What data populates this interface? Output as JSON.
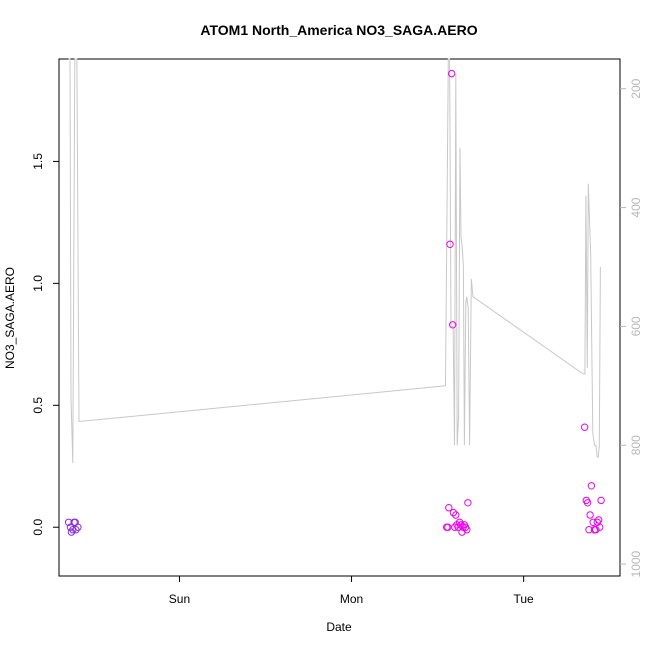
{
  "chart_data": {
    "type": "scatter",
    "title": "ATOM1 North_America NO3_SAGA.AERO",
    "xlabel": "Date",
    "ylabel": "NO3_SAGA.AERO",
    "x_unit": "days since Saturday 00:00",
    "xlim": [
      0.3,
      3.56
    ],
    "ylim": [
      -0.2,
      1.92
    ],
    "x_ticks": [
      {
        "value": 1,
        "label": "Sun"
      },
      {
        "value": 2,
        "label": "Mon"
      },
      {
        "value": 3,
        "label": "Tue"
      }
    ],
    "y_ticks": [
      {
        "value": 0.0,
        "label": "0.0"
      },
      {
        "value": 0.5,
        "label": "0.5"
      },
      {
        "value": 1.0,
        "label": "1.0"
      },
      {
        "value": 1.5,
        "label": "1.5"
      }
    ],
    "y2_ticks": [
      {
        "value": 200,
        "label": "200"
      },
      {
        "value": 400,
        "label": "400"
      },
      {
        "value": 600,
        "label": "600"
      },
      {
        "value": 800,
        "label": "800"
      },
      {
        "value": 1000,
        "label": "1000"
      }
    ],
    "y2lim": [
      1020,
      150
    ],
    "grid": false,
    "series": [
      {
        "color": "#8a2be2",
        "points": [
          [
            0.356,
            0.02
          ],
          [
            0.366,
            0.0
          ],
          [
            0.372,
            -0.02
          ],
          [
            0.38,
            -0.01
          ],
          [
            0.388,
            0.02
          ],
          [
            0.394,
            0.02
          ],
          [
            0.398,
            -0.01
          ],
          [
            0.41,
            0.0
          ]
        ]
      },
      {
        "color": "#ee00ee",
        "points": [
          [
            2.553,
            0.0
          ],
          [
            2.56,
            0.0
          ],
          [
            2.565,
            0.08
          ],
          [
            2.572,
            1.16
          ],
          [
            2.582,
            1.86
          ],
          [
            2.588,
            0.83
          ],
          [
            2.592,
            0.06
          ],
          [
            2.6,
            0.0
          ],
          [
            2.606,
            0.05
          ],
          [
            2.612,
            0.01
          ],
          [
            2.62,
            0.0
          ],
          [
            2.628,
            0.02
          ],
          [
            2.636,
            0.01
          ],
          [
            2.642,
            -0.02
          ],
          [
            2.648,
            0.0
          ],
          [
            2.655,
            0.01
          ],
          [
            2.662,
            0.0
          ],
          [
            2.67,
            -0.01
          ],
          [
            2.676,
            0.1
          ],
          [
            3.355,
            0.41
          ],
          [
            3.364,
            0.11
          ],
          [
            3.372,
            0.1
          ],
          [
            3.38,
            -0.01
          ],
          [
            3.386,
            0.05
          ],
          [
            3.394,
            0.17
          ],
          [
            3.404,
            0.02
          ],
          [
            3.412,
            -0.01
          ],
          [
            3.42,
            -0.01
          ],
          [
            3.428,
            0.02
          ],
          [
            3.436,
            0.03
          ],
          [
            3.442,
            0.0
          ],
          [
            3.45,
            0.11
          ]
        ]
      }
    ],
    "pressure_line": {
      "color": "#c8c8c8",
      "points": [
        [
          0.356,
          150
        ],
        [
          0.364,
          150
        ],
        [
          0.37,
          720
        ],
        [
          0.38,
          830
        ],
        [
          0.392,
          150
        ],
        [
          0.398,
          150
        ],
        [
          0.404,
          150
        ],
        [
          0.416,
          760
        ],
        [
          2.546,
          700
        ],
        [
          2.562,
          150
        ],
        [
          2.57,
          150
        ],
        [
          2.578,
          600
        ],
        [
          2.59,
          600
        ],
        [
          2.598,
          800
        ],
        [
          2.606,
          175
        ],
        [
          2.614,
          800
        ],
        [
          2.622,
          750
        ],
        [
          2.63,
          300
        ],
        [
          2.636,
          450
        ],
        [
          2.644,
          470
        ],
        [
          2.65,
          500
        ],
        [
          2.656,
          800
        ],
        [
          2.664,
          560
        ],
        [
          2.67,
          550
        ],
        [
          2.678,
          570
        ],
        [
          2.686,
          800
        ],
        [
          2.696,
          520
        ],
        [
          2.706,
          550
        ],
        [
          3.346,
          680
        ],
        [
          3.356,
          680
        ],
        [
          3.362,
          380
        ],
        [
          3.37,
          670
        ],
        [
          3.376,
          360
        ],
        [
          3.39,
          480
        ],
        [
          3.402,
          780
        ],
        [
          3.412,
          800
        ],
        [
          3.42,
          800
        ],
        [
          3.428,
          820
        ],
        [
          3.434,
          820
        ],
        [
          3.44,
          800
        ],
        [
          3.446,
          500
        ]
      ]
    }
  }
}
